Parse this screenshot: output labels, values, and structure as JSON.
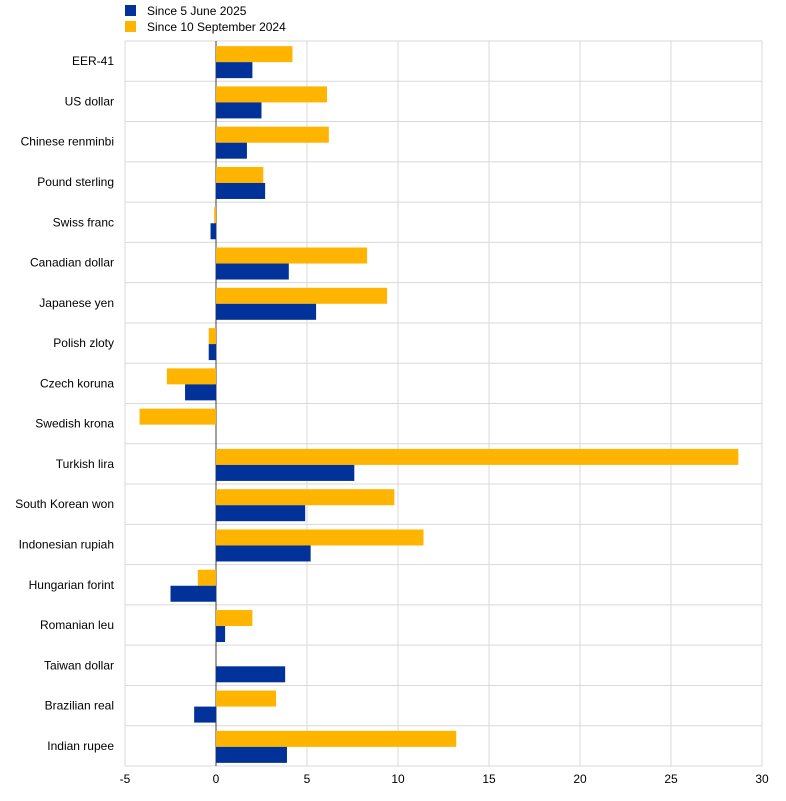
{
  "chart_data": {
    "type": "bar",
    "orientation": "horizontal",
    "title": "",
    "xlabel": "",
    "ylabel": "",
    "xlim": [
      -5,
      30
    ],
    "xticks": [
      -5,
      0,
      5,
      10,
      15,
      20,
      25,
      30
    ],
    "grid": true,
    "legend_position": "top-left",
    "categories": [
      "EER-41",
      "US dollar",
      "Chinese renminbi",
      "Pound sterling",
      "Swiss franc",
      "Canadian dollar",
      "Japanese yen",
      "Polish zloty",
      "Czech koruna",
      "Swedish krona",
      "Turkish lira",
      "South Korean won",
      "Indonesian rupiah",
      "Hungarian forint",
      "Romanian leu",
      "Taiwan dollar",
      "Brazilian real",
      "Indian rupee"
    ],
    "series": [
      {
        "name": "Since 10 September 2024",
        "color": "#FFB400",
        "values": [
          4.2,
          6.1,
          6.2,
          2.6,
          -0.1,
          8.3,
          9.4,
          -0.4,
          -2.7,
          -4.2,
          28.7,
          9.8,
          11.4,
          -1.0,
          2.0,
          0.0,
          3.3,
          13.2
        ]
      },
      {
        "name": "Since 5 June 2025",
        "color": "#003299",
        "values": [
          2.0,
          2.5,
          1.7,
          2.7,
          -0.3,
          4.0,
          5.5,
          -0.4,
          -1.7,
          0.0,
          7.6,
          4.9,
          5.2,
          -2.5,
          0.5,
          3.8,
          -1.2,
          3.9
        ]
      }
    ]
  }
}
